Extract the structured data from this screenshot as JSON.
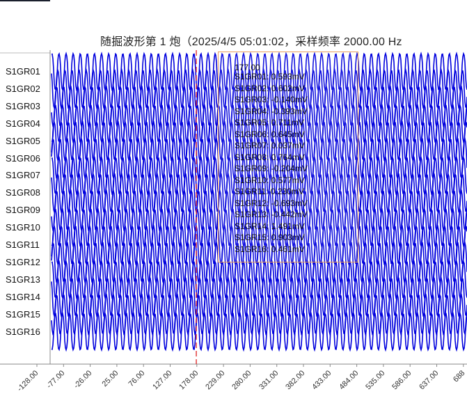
{
  "title": "随掘波形第 1 炮（2025/4/5 05:01:02，采样频率 2000.00 Hz",
  "colors": {
    "wave": "#0000dd",
    "cursor": "#e03030",
    "tooltip_border": "#e8a060",
    "axis": "#888888"
  },
  "chart_data": {
    "type": "line",
    "x_tick_labels": [
      "-128.00",
      "-77.00",
      "-26.00",
      "25.00",
      "76.00",
      "127.00",
      "178.00",
      "229.00",
      "280.00",
      "331.00",
      "382.00",
      "433.00",
      "484.00",
      "535.00",
      "586.00",
      "637.00",
      "688"
    ],
    "x_range": [
      -128,
      688
    ],
    "series": [
      {
        "name": "S1GR01"
      },
      {
        "name": "S1GR02"
      },
      {
        "name": "S1GR03"
      },
      {
        "name": "S1GR04"
      },
      {
        "name": "S1GR05"
      },
      {
        "name": "S1GR06"
      },
      {
        "name": "S1GR07"
      },
      {
        "name": "S1GR08"
      },
      {
        "name": "S1GR09"
      },
      {
        "name": "S1GR10"
      },
      {
        "name": "S1GR11"
      },
      {
        "name": "S1GR12"
      },
      {
        "name": "S1GR13"
      },
      {
        "name": "S1GR14"
      },
      {
        "name": "S1GR15"
      },
      {
        "name": "S1GR16"
      }
    ],
    "cursor_x": 177
  },
  "tooltip": {
    "header": "177.00",
    "lines": [
      "S1GR01: 0.593mV",
      "S1GR02: 0.602mV",
      "S1GR03: -0.140mV",
      "S1GR04: -0.393mV",
      "S1GR05: 0.711mV",
      "S1GR06: 0.645mV",
      "S1GR07: 0.037mV",
      "S1GR08: 0.764mV",
      "S1GR09: -0.204mV",
      "S1GR10: 0.577mV",
      "S1GR11: 0.230mV",
      "S1GR12: -0.693mV",
      "S1GR13: -0.442mV",
      "S1GR14: 1.491mV",
      "S1GR15: 0.903mV",
      "S1GR16: 0.461mV"
    ]
  }
}
